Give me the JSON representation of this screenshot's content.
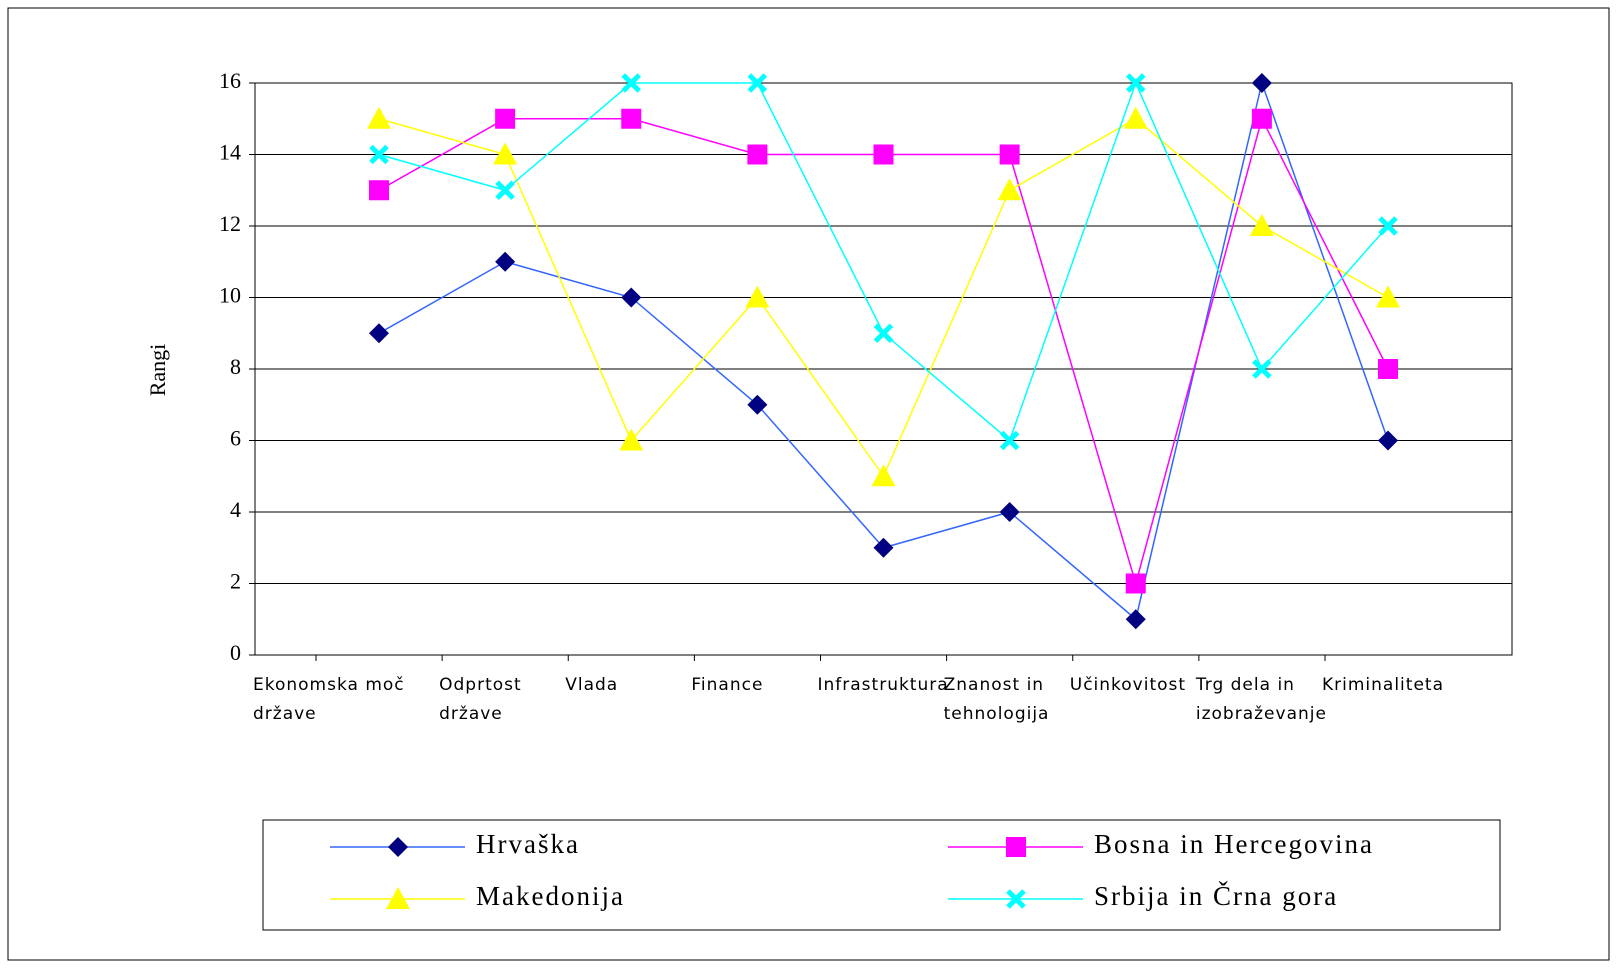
{
  "chart_data": {
    "type": "line",
    "y_label": "Rangi",
    "categories": [
      "Ekonomska moč države",
      "Odprtost države",
      "Vlada",
      "Finance",
      "Infrastruktura",
      "Znanost in tehnologija",
      "Učinkovitost",
      "Trg dela in izobraževanje",
      "Kriminaliteta"
    ],
    "series": [
      {
        "name": "Hrvaška",
        "color": "#000080",
        "line_color": "#3366ff",
        "marker": "diamond",
        "values": [
          9,
          11,
          10,
          7,
          3,
          4,
          1,
          16,
          6
        ]
      },
      {
        "name": "Bosna in Hercegovina",
        "color": "#ff00ff",
        "line_color": "#ff00ff",
        "marker": "square",
        "values": [
          13,
          15,
          15,
          14,
          14,
          14,
          2,
          15,
          8
        ]
      },
      {
        "name": "Makedonija",
        "color": "#ffff00",
        "line_color": "#ffff00",
        "marker": "triangle",
        "values": [
          15,
          14,
          6,
          10,
          5,
          13,
          15,
          12,
          10
        ]
      },
      {
        "name": "Srbija in Črna gora",
        "color": "#00ffff",
        "line_color": "#00ffff",
        "marker": "x",
        "values": [
          14,
          13,
          16,
          16,
          9,
          6,
          16,
          8,
          12
        ]
      }
    ],
    "ylim": [
      0,
      16
    ],
    "yticks": [
      0,
      2,
      4,
      6,
      8,
      10,
      12,
      14,
      16
    ],
    "grid": true,
    "legend": "bottom"
  }
}
